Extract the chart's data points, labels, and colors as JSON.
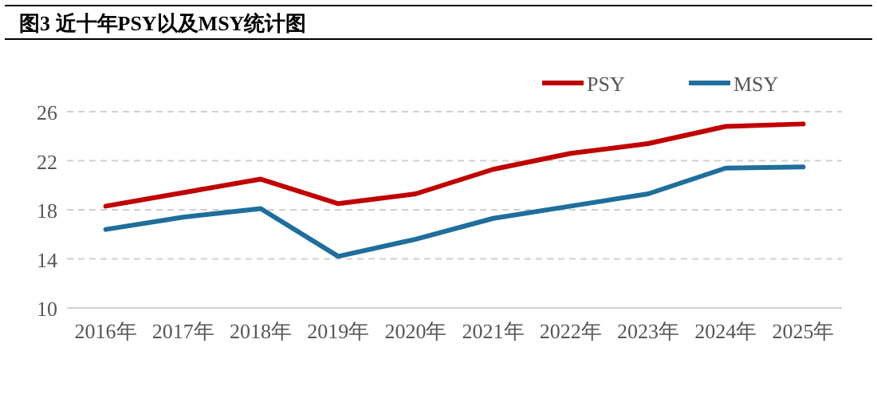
{
  "chart_data": {
    "type": "line",
    "title": "图3 近十年PSY以及MSY统计图",
    "categories": [
      "2016年",
      "2017年",
      "2018年",
      "2019年",
      "2020年",
      "2021年",
      "2022年",
      "2023年",
      "2024年",
      "2025年"
    ],
    "series": [
      {
        "name": "PSY",
        "color": "#c00000",
        "values": [
          18.3,
          19.4,
          20.5,
          18.5,
          19.3,
          21.3,
          22.6,
          23.4,
          24.8,
          25.0
        ]
      },
      {
        "name": "MSY",
        "color": "#1f6e9c",
        "values": [
          16.4,
          17.4,
          18.1,
          14.2,
          15.6,
          17.3,
          18.3,
          19.3,
          21.4,
          21.5
        ]
      }
    ],
    "ylim": [
      10,
      26
    ],
    "yticks": [
      10,
      14,
      18,
      22,
      26
    ],
    "grid": "y",
    "legend": "top right",
    "marker": "none",
    "line_style": "solid"
  }
}
